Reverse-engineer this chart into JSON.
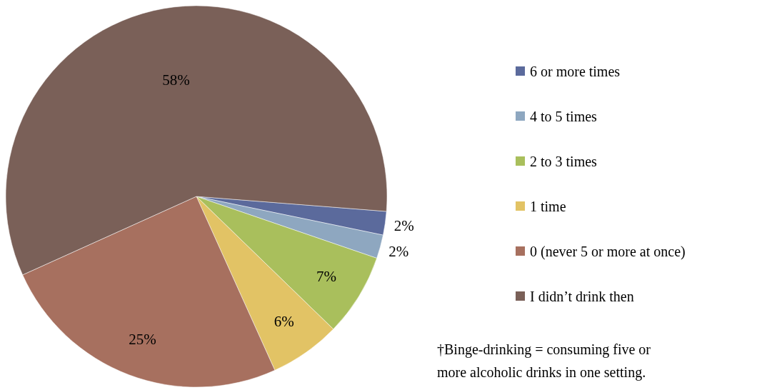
{
  "chart_data": {
    "type": "pie",
    "categories": [
      "6 or more times",
      "4 to 5 times",
      "2 to 3 times",
      "1 time",
      "0 (never 5 or more at once)",
      "I didn’t drink then"
    ],
    "values": [
      2,
      2,
      7,
      6,
      25,
      58
    ],
    "colors": [
      "#5b6a9c",
      "#8ea7c0",
      "#a9bf5c",
      "#e2c365",
      "#a7705f",
      "#7a6058"
    ],
    "value_labels": [
      "2%",
      "2%",
      "7%",
      "6%",
      "25%",
      "58%"
    ],
    "legend": "right",
    "annotations": [
      "†Binge-drinking = consuming five or more alcoholic drinks in one setting."
    ]
  }
}
